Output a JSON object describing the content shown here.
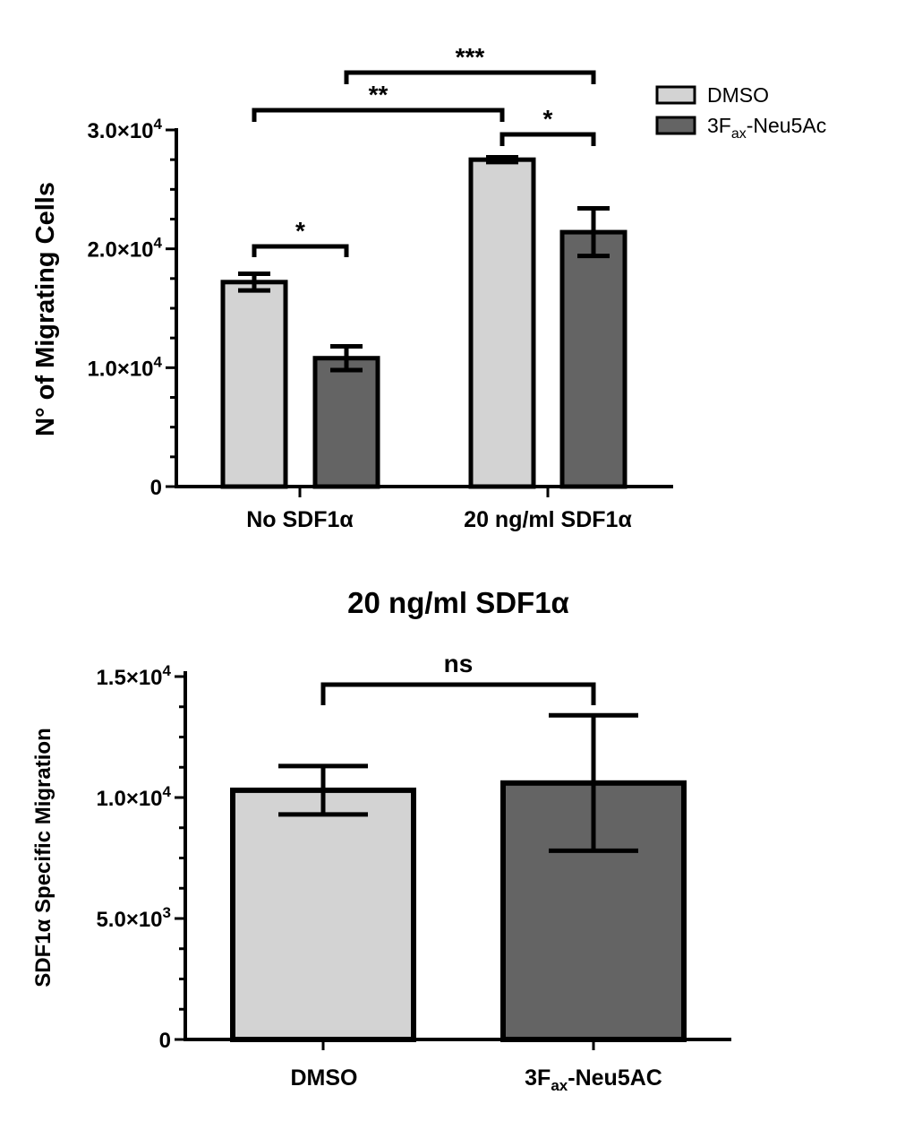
{
  "colors": {
    "dmso": "#d3d3d3",
    "treated": "#646464",
    "stroke": "#000000"
  },
  "chart_data": [
    {
      "type": "bar",
      "title": "",
      "ylabel": "N° of Migrating Cells",
      "ylim": [
        0,
        30000
      ],
      "y_ticks": [
        {
          "value": 0,
          "mantissa": "0",
          "exp": ""
        },
        {
          "value": 10000,
          "mantissa": "1.0×10",
          "exp": "4"
        },
        {
          "value": 20000,
          "mantissa": "2.0×10",
          "exp": "4"
        },
        {
          "value": 30000,
          "mantissa": "3.0×10",
          "exp": "4"
        }
      ],
      "categories": [
        "No SDF1α",
        "20 ng/ml SDF1α"
      ],
      "series": [
        {
          "name": "DMSO",
          "values": [
            17200,
            27500
          ],
          "errors": [
            700,
            200
          ]
        },
        {
          "name": "3Fax-Neu5Ac",
          "values": [
            10800,
            21400
          ],
          "errors": [
            1000,
            2000
          ]
        }
      ],
      "legend": {
        "position": "top-right",
        "entries": [
          {
            "main": "DMSO",
            "sub": "",
            "rest": ""
          },
          {
            "main": "3F",
            "sub": "ax",
            "rest": "-Neu5Ac"
          }
        ]
      },
      "significance": [
        {
          "from": [
            0,
            0
          ],
          "to": [
            0,
            1
          ],
          "label": "*"
        },
        {
          "from": [
            0,
            0
          ],
          "to": [
            1,
            0
          ],
          "label": "**"
        },
        {
          "from": [
            1,
            0
          ],
          "to": [
            1,
            1
          ],
          "label": "*"
        },
        {
          "from": [
            0,
            1
          ],
          "to": [
            1,
            1
          ],
          "label": "***"
        }
      ]
    },
    {
      "type": "bar",
      "title": "20 ng/ml SDF1α",
      "ylabel": "SDF1α Specific Migration",
      "ylim": [
        0,
        15000
      ],
      "y_ticks": [
        {
          "value": 0,
          "mantissa": "0",
          "exp": ""
        },
        {
          "value": 5000,
          "mantissa": "5.0×10",
          "exp": "3"
        },
        {
          "value": 10000,
          "mantissa": "1.0×10",
          "exp": "4"
        },
        {
          "value": 15000,
          "mantissa": "1.5×10",
          "exp": "4"
        }
      ],
      "categories": [
        {
          "main": "DMSO",
          "sub": "",
          "rest": ""
        },
        {
          "main": "3F",
          "sub": "ax",
          "rest": "-Neu5AC"
        }
      ],
      "values": [
        10300,
        10600
      ],
      "errors": [
        1000,
        2800
      ],
      "significance": [
        {
          "from": 0,
          "to": 1,
          "label": "ns"
        }
      ]
    }
  ]
}
